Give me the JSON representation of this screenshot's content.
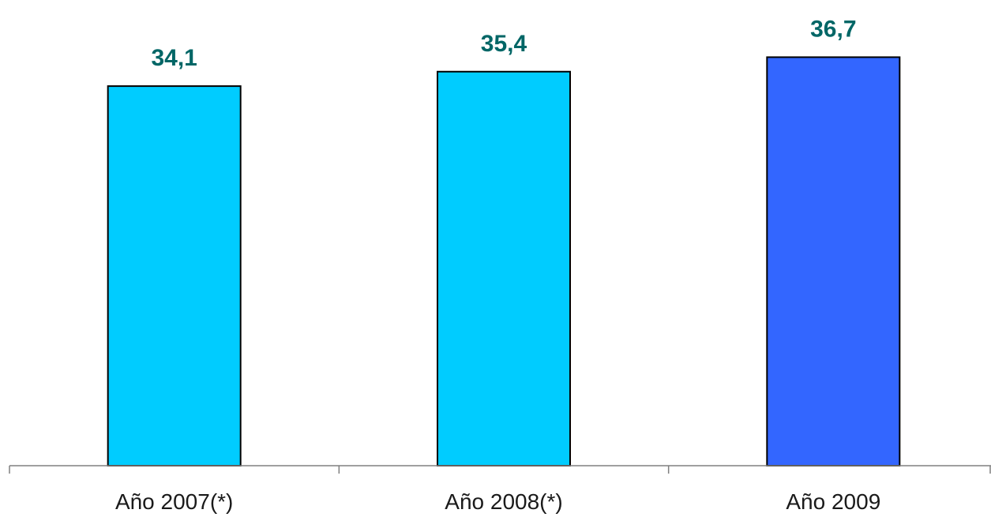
{
  "chart_data": {
    "type": "bar",
    "categories": [
      "Año 2007(*)",
      "Año 2008(*)",
      "Año 2009"
    ],
    "values": [
      34.1,
      35.4,
      36.7
    ],
    "value_labels": [
      "34,1",
      "35,4",
      "36,7"
    ],
    "title": "",
    "xlabel": "",
    "ylabel": "",
    "ylim": [
      0,
      39
    ],
    "grid": false,
    "bar_colors": [
      "#00ccff",
      "#00ccff",
      "#3366ff"
    ],
    "bar_outline_color": "#000000",
    "value_label_color": "#006666",
    "axis_color": "#808080"
  }
}
